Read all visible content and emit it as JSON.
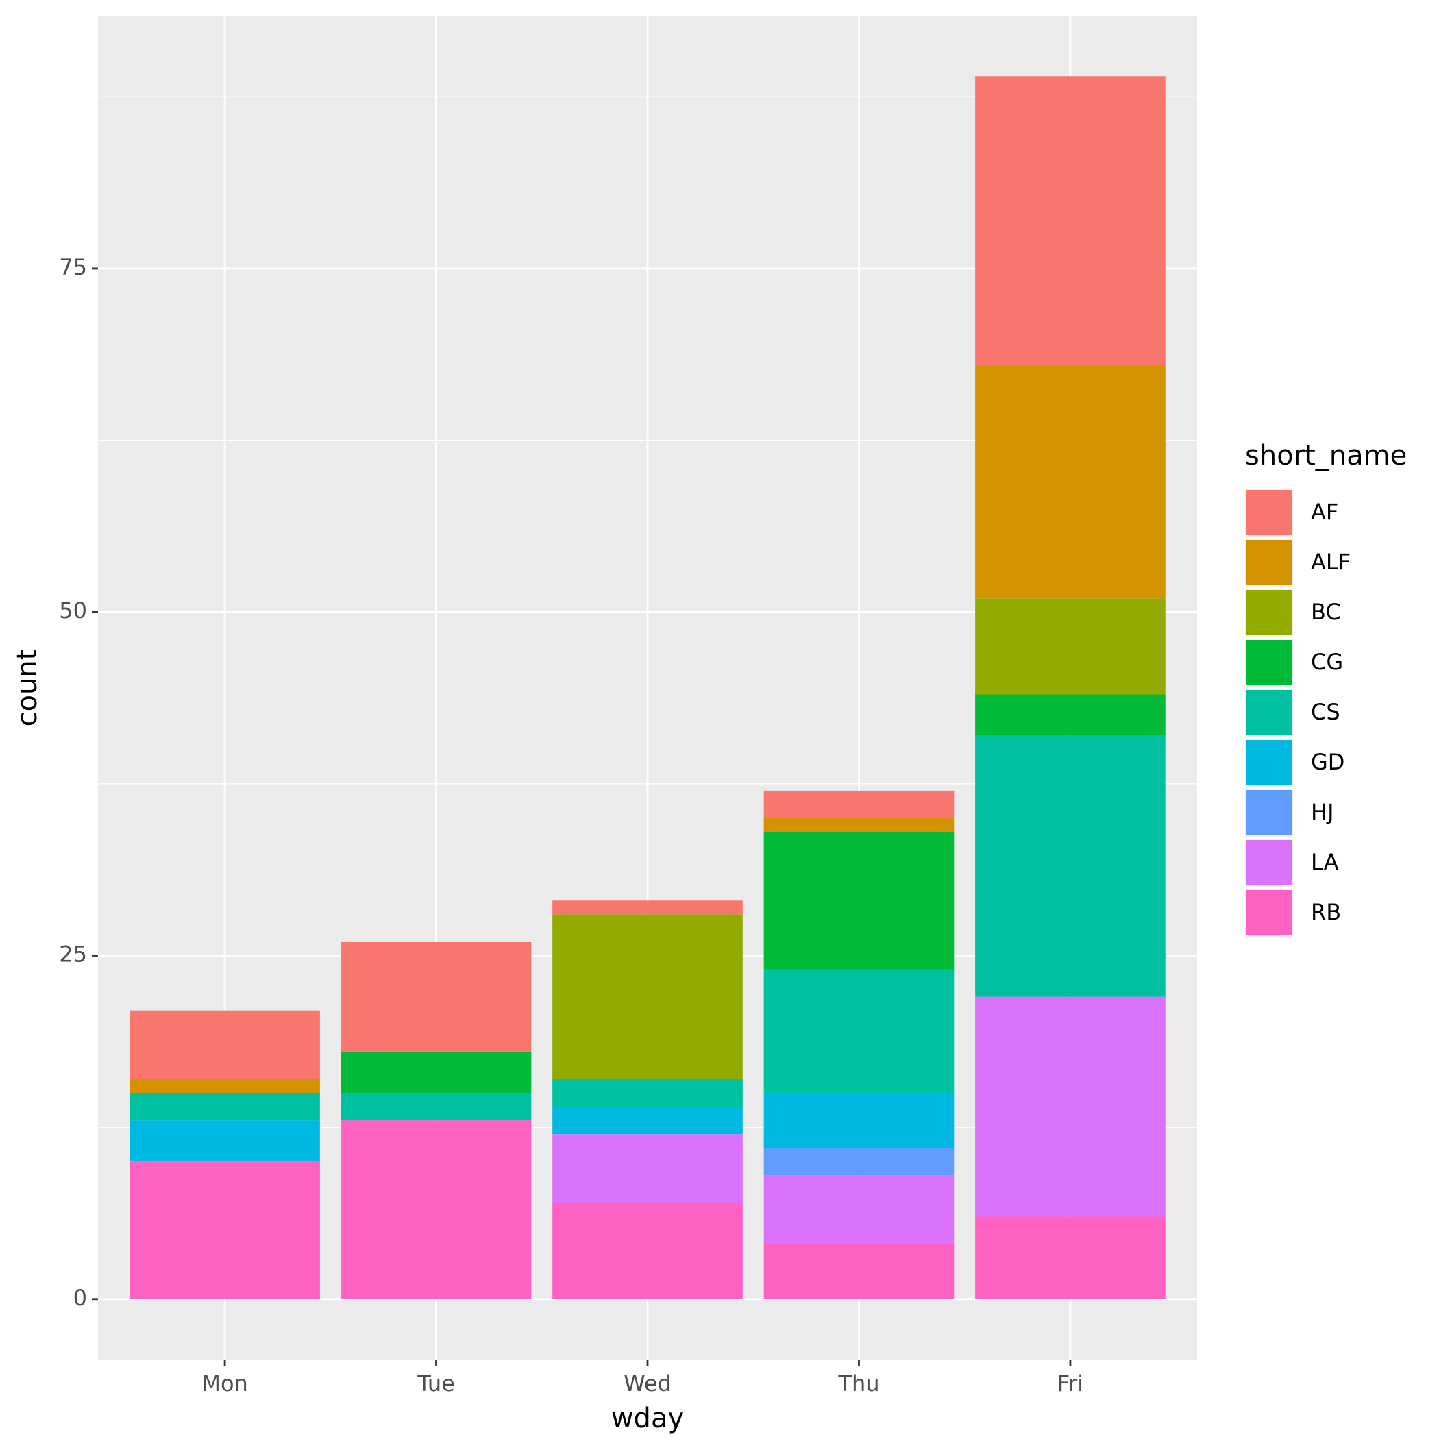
{
  "chart_data": {
    "type": "stacked-bar",
    "x_label": "wday",
    "y_label": "count",
    "legend_title": "short_name",
    "categories": [
      "Mon",
      "Tue",
      "Wed",
      "Thu",
      "Fri"
    ],
    "series": [
      {
        "name": "AF",
        "color": "#F8766D",
        "values": [
          5,
          8,
          1,
          2,
          21
        ]
      },
      {
        "name": "ALF",
        "color": "#D39200",
        "values": [
          1,
          0,
          0,
          1,
          17
        ]
      },
      {
        "name": "BC",
        "color": "#93AA00",
        "values": [
          0,
          0,
          12,
          0,
          7
        ]
      },
      {
        "name": "CG",
        "color": "#00BA38",
        "values": [
          0,
          3,
          0,
          10,
          3
        ]
      },
      {
        "name": "CS",
        "color": "#00C19F",
        "values": [
          2,
          2,
          2,
          9,
          19
        ]
      },
      {
        "name": "GD",
        "color": "#00B9E3",
        "values": [
          3,
          0,
          2,
          4,
          0
        ]
      },
      {
        "name": "HJ",
        "color": "#619CFF",
        "values": [
          0,
          0,
          0,
          2,
          0
        ]
      },
      {
        "name": "LA",
        "color": "#DB72FB",
        "values": [
          0,
          0,
          5,
          5,
          16
        ]
      },
      {
        "name": "RB",
        "color": "#FF61C3",
        "values": [
          10,
          13,
          7,
          4,
          6
        ]
      }
    ],
    "ylim": [
      -4.45,
      93.4
    ],
    "yticks": [
      0,
      25,
      50,
      75
    ],
    "yminorticks": [
      12.5,
      37.5,
      62.5,
      87.5
    ],
    "grid": true,
    "legend": "right"
  }
}
